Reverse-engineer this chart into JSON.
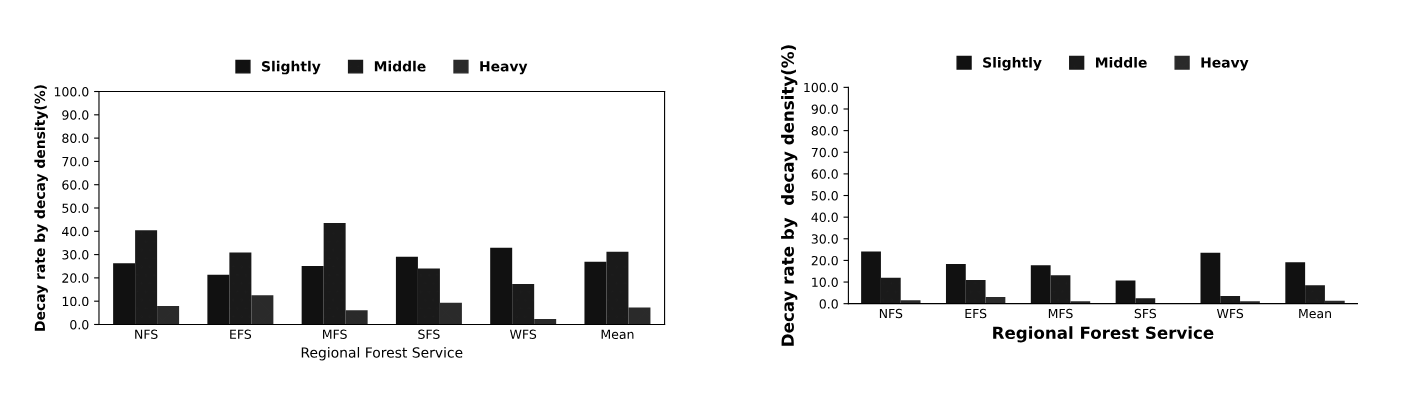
{
  "chart_data": [
    {
      "type": "bar",
      "xlabel": "Regional Forest Service",
      "ylabel": "Decay rate by decay density(%)",
      "categories": [
        "NFS",
        "EFS",
        "MFS",
        "SFS",
        "WFS",
        "Mean"
      ],
      "series": [
        {
          "name": "Slightly",
          "color": "#111111",
          "values": [
            26.3,
            21.3,
            25.1,
            29.1,
            32.9,
            26.9
          ]
        },
        {
          "name": "Middle",
          "color": "#1a1a1a",
          "values": [
            40.5,
            30.9,
            43.6,
            24.0,
            17.4,
            31.2
          ]
        },
        {
          "name": "Heavy",
          "color": "#2a2a2a",
          "values": [
            7.9,
            12.6,
            6.1,
            9.3,
            2.3,
            7.3
          ]
        }
      ],
      "ylim": [
        0,
        100
      ],
      "yticks": [
        {
          "value": 0,
          "label": "0.0"
        },
        {
          "value": 10,
          "label": "10.0"
        },
        {
          "value": 20,
          "label": "20.0"
        },
        {
          "value": 30,
          "label": "30.0"
        },
        {
          "value": 40,
          "label": "40.0"
        },
        {
          "value": 50,
          "label": "50.0"
        },
        {
          "value": 60,
          "label": "60.0"
        },
        {
          "value": 70,
          "label": "70.0"
        },
        {
          "value": 80,
          "label": "80.0"
        },
        {
          "value": 90,
          "label": "90.0"
        },
        {
          "value": 100,
          "label": "100.0"
        }
      ],
      "grid": false,
      "legend": "top"
    },
    {
      "type": "bar",
      "xlabel": "Regional Forest Service",
      "ylabel": "Decay rate by  decay density(%)",
      "categories": [
        "NFS",
        "EFS",
        "MFS",
        "SFS",
        "WFS",
        "Mean"
      ],
      "series": [
        {
          "name": "Slightly",
          "color": "#111111",
          "values": [
            24.1,
            18.4,
            17.8,
            10.7,
            23.6,
            19.1
          ]
        },
        {
          "name": "Middle",
          "color": "#1a1a1a",
          "values": [
            12.0,
            10.9,
            13.1,
            2.5,
            3.6,
            8.5
          ]
        },
        {
          "name": "Heavy",
          "color": "#2a2a2a",
          "values": [
            1.6,
            3.1,
            1.1,
            0,
            1.1,
            1.3
          ]
        }
      ],
      "ylim": [
        0,
        100
      ],
      "yticks": [
        {
          "value": 0,
          "label": "0.0"
        },
        {
          "value": 10,
          "label": "10.0"
        },
        {
          "value": 20,
          "label": "20.0"
        },
        {
          "value": 30,
          "label": "30.0"
        },
        {
          "value": 40,
          "label": "40.0"
        },
        {
          "value": 50,
          "label": "50.0"
        },
        {
          "value": 60,
          "label": "60.0"
        },
        {
          "value": 70,
          "label": "70.0"
        },
        {
          "value": 80,
          "label": "80.0"
        },
        {
          "value": 90,
          "label": "90.0"
        },
        {
          "value": 100,
          "label": "100.0"
        }
      ],
      "grid": false,
      "legend": "top"
    }
  ]
}
